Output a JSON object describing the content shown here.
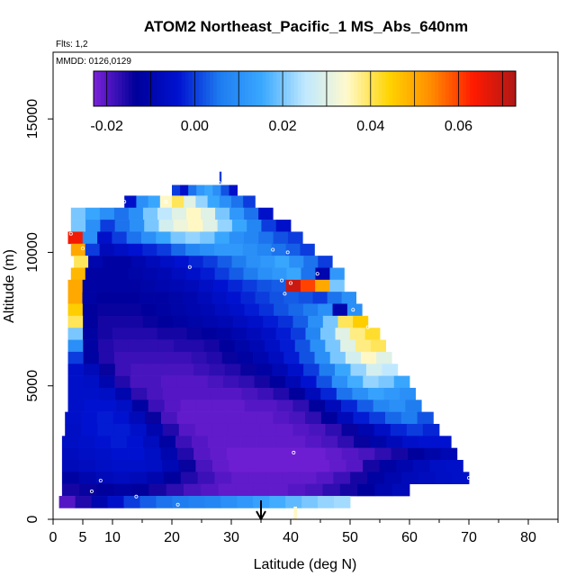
{
  "chart_data": {
    "type": "heatmap",
    "title": "ATOM2 Northeast_Pacific_1 MS_Abs_640nm",
    "flights_label": "Flts: 1,2",
    "dates_label": "MMDD: 0126,0129",
    "xlabel": "Latitude (deg N)",
    "ylabel": "Altitude (m)",
    "xlim": [
      0,
      85
    ],
    "ylim": [
      0,
      17500
    ],
    "x_ticks": [
      0,
      5,
      10,
      20,
      30,
      40,
      50,
      60,
      70,
      80
    ],
    "y_ticks": [
      0,
      5000,
      10000,
      15000
    ],
    "color_scale": {
      "min": -0.023,
      "max": 0.073,
      "tick_values": [
        -0.02,
        0.0,
        0.02,
        0.04,
        0.06
      ],
      "tick_labels": [
        "-0.02",
        "0.00",
        "0.02",
        "0.04",
        "0.06"
      ],
      "colors": [
        "#7b22d8",
        "#00009a",
        "#0012d0",
        "#1e7cf0",
        "#3aa8ff",
        "#bfe8ff",
        "#fffacd",
        "#ffd400",
        "#ff8c00",
        "#ff1a00",
        "#b01818"
      ]
    },
    "arrow_latitude": 35,
    "bands": [
      {
        "alt": 12800,
        "lat_min": 28,
        "lat_max": 28.3,
        "values": [
          0.0
        ]
      },
      {
        "alt": 12300,
        "lat_min": 20,
        "lat_max": 31,
        "values": [
          0.0,
          -0.005,
          0.005,
          0.012,
          0.015,
          0.01,
          0.002,
          -0.005
        ]
      },
      {
        "alt": 11900,
        "lat_min": 12,
        "lat_max": 34,
        "values": [
          -0.005,
          0.01,
          0.015,
          0.035,
          0.04,
          0.03,
          0.022,
          0.015,
          0.01,
          0.005,
          0.0
        ]
      },
      {
        "alt": 11450,
        "lat_min": 3,
        "lat_max": 37,
        "values": [
          0.02,
          0.015,
          0.01,
          0.005,
          0.01,
          0.02,
          0.025,
          0.03,
          0.035,
          0.03,
          0.02,
          0.012,
          0.005,
          -0.005
        ]
      },
      {
        "alt": 11000,
        "lat_min": 3,
        "lat_max": 40,
        "values": [
          0.02,
          0.01,
          0.0,
          0.005,
          0.01,
          0.02,
          0.028,
          0.032,
          0.035,
          0.03,
          0.022,
          0.015,
          0.008,
          0.0,
          -0.005
        ]
      },
      {
        "alt": 10550,
        "lat_min": 2.5,
        "lat_max": 42,
        "values": [
          0.065,
          0.01,
          -0.005,
          0.0,
          0.005,
          0.01,
          0.015,
          0.02,
          0.022,
          0.02,
          0.015,
          0.01,
          0.008,
          0.005,
          0.002,
          0.0
        ]
      },
      {
        "alt": 10100,
        "lat_min": 3,
        "lat_max": 44,
        "values": [
          0.05,
          0.0,
          -0.008,
          -0.006,
          -0.004,
          -0.002,
          0.0,
          0.004,
          0.008,
          0.01,
          0.012,
          0.012,
          0.01,
          0.008,
          0.005,
          0.003,
          0.0
        ]
      },
      {
        "alt": 9650,
        "lat_min": 3.5,
        "lat_max": 47,
        "values": [
          0.04,
          -0.01,
          -0.012,
          -0.012,
          -0.01,
          -0.008,
          -0.006,
          -0.004,
          -0.002,
          0.0,
          0.003,
          0.006,
          0.01,
          0.012,
          0.015,
          0.01,
          0.005,
          0.0
        ]
      },
      {
        "alt": 9200,
        "lat_min": 3,
        "lat_max": 49,
        "values": [
          0.048,
          -0.012,
          -0.012,
          -0.012,
          -0.011,
          -0.01,
          -0.009,
          -0.007,
          -0.005,
          -0.003,
          0.0,
          0.003,
          0.006,
          0.01,
          0.012,
          0.015,
          0.005,
          -0.01,
          0.012
        ]
      },
      {
        "alt": 8750,
        "lat_min": 2.5,
        "lat_max": 49,
        "values": [
          0.05,
          -0.012,
          -0.012,
          -0.012,
          -0.012,
          -0.011,
          -0.01,
          -0.009,
          -0.008,
          -0.006,
          -0.004,
          -0.002,
          0.0,
          0.002,
          0.003,
          0.07,
          0.06,
          0.05,
          0.02
        ]
      },
      {
        "alt": 8300,
        "lat_min": 2.5,
        "lat_max": 51,
        "values": [
          0.05,
          -0.012,
          -0.013,
          -0.013,
          -0.013,
          -0.012,
          -0.012,
          -0.011,
          -0.01,
          -0.008,
          -0.006,
          -0.004,
          -0.002,
          0.0,
          0.002,
          0.003,
          0.002,
          0.0,
          0.005,
          0.01
        ]
      },
      {
        "alt": 7850,
        "lat_min": 2.5,
        "lat_max": 52,
        "values": [
          0.045,
          -0.013,
          -0.014,
          -0.014,
          -0.014,
          -0.013,
          -0.012,
          -0.011,
          -0.01,
          -0.009,
          -0.007,
          -0.005,
          -0.003,
          -0.001,
          0.002,
          0.004,
          0.006,
          0.01,
          -0.01,
          0.01
        ]
      },
      {
        "alt": 7400,
        "lat_min": 2.5,
        "lat_max": 53,
        "values": [
          0.04,
          -0.013,
          -0.015,
          -0.015,
          -0.015,
          -0.014,
          -0.013,
          -0.012,
          -0.011,
          -0.01,
          -0.009,
          -0.007,
          -0.005,
          -0.003,
          -0.001,
          0.003,
          0.01,
          0.02,
          0.04,
          0.045
        ]
      },
      {
        "alt": 6950,
        "lat_min": 2.5,
        "lat_max": 55,
        "values": [
          0.02,
          -0.012,
          -0.015,
          -0.016,
          -0.016,
          -0.016,
          -0.015,
          -0.015,
          -0.014,
          -0.013,
          -0.012,
          -0.01,
          -0.008,
          -0.006,
          -0.003,
          0.0,
          0.008,
          0.02,
          0.03,
          0.038,
          0.042
        ]
      },
      {
        "alt": 6500,
        "lat_min": 2.5,
        "lat_max": 56,
        "values": [
          0.01,
          -0.012,
          -0.016,
          -0.017,
          -0.017,
          -0.017,
          -0.017,
          -0.016,
          -0.016,
          -0.015,
          -0.013,
          -0.011,
          -0.009,
          -0.006,
          -0.003,
          0.002,
          0.01,
          0.02,
          0.03,
          0.038,
          0.04
        ]
      },
      {
        "alt": 6050,
        "lat_min": 2.5,
        "lat_max": 57,
        "values": [
          0.0,
          -0.012,
          -0.016,
          -0.018,
          -0.018,
          -0.018,
          -0.018,
          -0.018,
          -0.017,
          -0.016,
          -0.014,
          -0.012,
          -0.01,
          -0.007,
          -0.003,
          0.002,
          0.01,
          0.02,
          0.028,
          0.035,
          0.03
        ]
      },
      {
        "alt": 5600,
        "lat_min": 2.5,
        "lat_max": 58,
        "values": [
          -0.005,
          -0.008,
          -0.014,
          -0.018,
          -0.019,
          -0.019,
          -0.019,
          -0.019,
          -0.018,
          -0.017,
          -0.016,
          -0.014,
          -0.012,
          -0.009,
          -0.005,
          0.0,
          0.006,
          0.015,
          0.022,
          0.028,
          0.025
        ]
      },
      {
        "alt": 5150,
        "lat_min": 2.5,
        "lat_max": 60,
        "values": [
          -0.005,
          -0.006,
          -0.01,
          -0.016,
          -0.019,
          -0.019,
          -0.02,
          -0.02,
          -0.02,
          -0.019,
          -0.018,
          -0.017,
          -0.015,
          -0.013,
          -0.009,
          -0.004,
          0.002,
          0.01,
          0.016,
          0.022,
          0.02,
          0.015
        ]
      },
      {
        "alt": 4700,
        "lat_min": 2.5,
        "lat_max": 61,
        "values": [
          -0.005,
          -0.005,
          -0.006,
          -0.01,
          -0.017,
          -0.019,
          -0.02,
          -0.02,
          -0.02,
          -0.02,
          -0.02,
          -0.019,
          -0.018,
          -0.016,
          -0.013,
          -0.008,
          -0.002,
          0.005,
          0.01,
          0.014,
          0.012,
          0.01
        ]
      },
      {
        "alt": 4250,
        "lat_min": 2.5,
        "lat_max": 62,
        "values": [
          -0.005,
          -0.004,
          -0.004,
          -0.006,
          -0.012,
          -0.018,
          -0.02,
          -0.021,
          -0.021,
          -0.021,
          -0.021,
          -0.02,
          -0.02,
          -0.019,
          -0.017,
          -0.013,
          -0.008,
          -0.002,
          0.003,
          0.008,
          0.01,
          0.006
        ]
      },
      {
        "alt": 3800,
        "lat_min": 2,
        "lat_max": 64,
        "values": [
          -0.005,
          -0.004,
          -0.003,
          -0.004,
          -0.008,
          -0.014,
          -0.019,
          -0.021,
          -0.021,
          -0.021,
          -0.021,
          -0.021,
          -0.021,
          -0.02,
          -0.019,
          -0.017,
          -0.013,
          -0.008,
          -0.003,
          0.0,
          0.004,
          0.006,
          0.002
        ]
      },
      {
        "alt": 3350,
        "lat_min": 2,
        "lat_max": 65,
        "values": [
          -0.006,
          -0.004,
          -0.003,
          -0.003,
          -0.005,
          -0.01,
          -0.016,
          -0.02,
          -0.021,
          -0.021,
          -0.021,
          -0.021,
          -0.021,
          -0.021,
          -0.02,
          -0.019,
          -0.017,
          -0.014,
          -0.01,
          -0.006,
          -0.002,
          0.0,
          -0.002
        ]
      },
      {
        "alt": 2900,
        "lat_min": 1.5,
        "lat_max": 67,
        "values": [
          -0.006,
          -0.005,
          -0.004,
          -0.003,
          -0.004,
          -0.007,
          -0.012,
          -0.018,
          -0.02,
          -0.021,
          -0.021,
          -0.021,
          -0.021,
          -0.021,
          -0.021,
          -0.02,
          -0.019,
          -0.017,
          -0.014,
          -0.011,
          -0.008,
          -0.005,
          -0.004,
          -0.004
        ]
      },
      {
        "alt": 2450,
        "lat_min": 1.5,
        "lat_max": 68,
        "values": [
          -0.007,
          -0.006,
          -0.005,
          -0.004,
          -0.004,
          -0.006,
          -0.01,
          -0.016,
          -0.02,
          -0.021,
          -0.022,
          -0.022,
          -0.022,
          -0.022,
          -0.022,
          -0.022,
          -0.021,
          -0.02,
          -0.019,
          -0.017,
          -0.015,
          -0.013,
          -0.011,
          -0.009
        ]
      },
      {
        "alt": 2000,
        "lat_min": 1.5,
        "lat_max": 69,
        "values": [
          -0.008,
          -0.007,
          -0.006,
          -0.005,
          -0.005,
          -0.006,
          -0.009,
          -0.014,
          -0.019,
          -0.021,
          -0.022,
          -0.022,
          -0.022,
          -0.022,
          -0.022,
          -0.022,
          -0.021,
          -0.02,
          -0.015,
          -0.012,
          -0.01,
          -0.008,
          -0.006,
          -0.005
        ]
      },
      {
        "alt": 1550,
        "lat_min": 1.5,
        "lat_max": 70,
        "values": [
          -0.012,
          -0.01,
          -0.008,
          -0.007,
          -0.008,
          -0.01,
          -0.013,
          -0.016,
          -0.018,
          -0.02,
          -0.021,
          -0.021,
          -0.021,
          -0.021,
          -0.021,
          -0.02,
          -0.018,
          -0.015,
          -0.012,
          -0.01,
          -0.008,
          -0.007,
          -0.006,
          -0.005
        ]
      },
      {
        "alt": 1100,
        "lat_min": 1.5,
        "lat_max": 60,
        "values": [
          -0.015,
          -0.014,
          -0.013,
          -0.012,
          -0.013,
          -0.015,
          -0.017,
          -0.019,
          -0.02,
          -0.021,
          -0.021,
          -0.021,
          -0.021,
          -0.02,
          -0.019,
          -0.017,
          -0.015,
          -0.013,
          -0.01,
          -0.008
        ]
      },
      {
        "alt": 650,
        "lat_min": 1,
        "lat_max": 50,
        "values": [
          -0.02,
          -0.016,
          -0.01,
          -0.005,
          0.0,
          0.003,
          0.005,
          0.006,
          0.007,
          0.008,
          0.01,
          0.012,
          0.014,
          0.016,
          0.018,
          0.02,
          0.022,
          0.023
        ]
      },
      {
        "alt": 250,
        "lat_min": 40.5,
        "lat_max": 41,
        "values": [
          0.035
        ]
      }
    ],
    "markers": [
      {
        "lat": 28,
        "alt": 12600
      },
      {
        "lat": 12,
        "alt": 11900
      },
      {
        "lat": 19,
        "alt": 11900
      },
      {
        "lat": 3,
        "alt": 10700
      },
      {
        "lat": 5,
        "alt": 10150
      },
      {
        "lat": 37,
        "alt": 10100
      },
      {
        "lat": 39.5,
        "alt": 10000
      },
      {
        "lat": 23,
        "alt": 9450
      },
      {
        "lat": 38.5,
        "alt": 8950
      },
      {
        "lat": 40,
        "alt": 8850
      },
      {
        "lat": 44.5,
        "alt": 9200
      },
      {
        "lat": 39,
        "alt": 8450
      },
      {
        "lat": 50.5,
        "alt": 7850
      },
      {
        "lat": 53,
        "alt": 7200
      },
      {
        "lat": 40.5,
        "alt": 2500
      },
      {
        "lat": 8,
        "alt": 1450
      },
      {
        "lat": 6.5,
        "alt": 1050
      },
      {
        "lat": 14,
        "alt": 850
      },
      {
        "lat": 70,
        "alt": 1550
      },
      {
        "lat": 0.5,
        "alt": 600
      },
      {
        "lat": 21,
        "alt": 550
      }
    ]
  }
}
